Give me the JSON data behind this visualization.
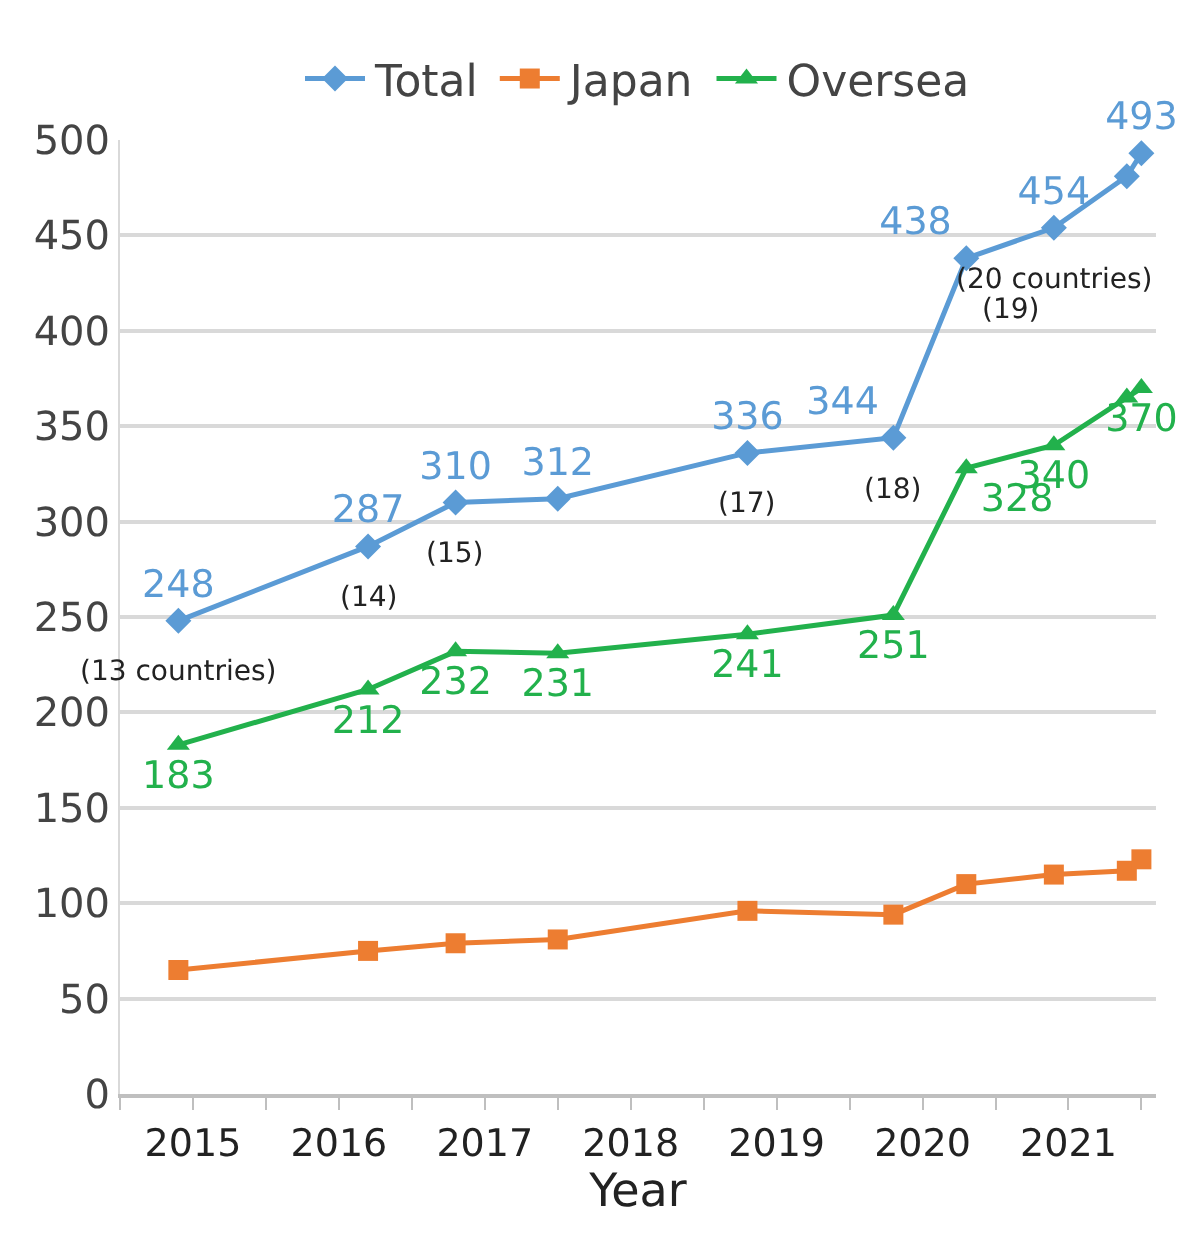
{
  "chart_data": {
    "type": "line",
    "xlabel": "Year",
    "xlim": [
      2015,
      2022.1
    ],
    "xticks": [
      {
        "value": 2015,
        "label": null
      },
      {
        "value": 2015.5,
        "label": "2015"
      },
      {
        "value": 2016,
        "label": null
      },
      {
        "value": 2016.5,
        "label": "2016"
      },
      {
        "value": 2017,
        "label": null
      },
      {
        "value": 2017.5,
        "label": "2017"
      },
      {
        "value": 2018,
        "label": null
      },
      {
        "value": 2018.5,
        "label": "2018"
      },
      {
        "value": 2019,
        "label": null
      },
      {
        "value": 2019.5,
        "label": "2019"
      },
      {
        "value": 2020,
        "label": null
      },
      {
        "value": 2020.5,
        "label": "2020"
      },
      {
        "value": 2021,
        "label": null
      },
      {
        "value": 2021.5,
        "label": "2021"
      },
      {
        "value": 2022,
        "label": null
      }
    ],
    "ylim": [
      0,
      500
    ],
    "yticks": [
      0,
      50,
      100,
      150,
      200,
      250,
      300,
      350,
      400,
      450,
      500
    ],
    "grid": "y",
    "legend": "top",
    "x": [
      2015.4,
      2016.7,
      2017.3,
      2018.0,
      2019.3,
      2020.3,
      2020.8,
      2021.4,
      2021.9,
      2022.0
    ],
    "series": [
      {
        "name": "Total",
        "color": "#5b9bd5",
        "marker": "diamond",
        "values": [
          248,
          287,
          310,
          312,
          336,
          344,
          438,
          454,
          481,
          493
        ],
        "value_labels": [
          "248",
          "287",
          "310",
          "312",
          "336",
          "344",
          "438",
          "454",
          null,
          "493"
        ]
      },
      {
        "name": "Japan",
        "color": "#ed7d31",
        "marker": "square",
        "values": [
          65,
          75,
          79,
          81,
          96,
          94,
          110,
          115,
          117,
          123
        ]
      },
      {
        "name": "Oversea",
        "color": "#22b14c",
        "marker": "triangle",
        "values": [
          183,
          212,
          232,
          231,
          241,
          251,
          328,
          340,
          365,
          370
        ],
        "value_labels": [
          "183",
          "212",
          "232",
          "231",
          "241",
          "251",
          "328",
          "340",
          null,
          "370"
        ]
      }
    ],
    "annotations": [
      {
        "text": "(13 countries)",
        "x": 2015.4,
        "y": 248
      },
      {
        "text": "(14)",
        "x": 2016.7,
        "y": 287
      },
      {
        "text": "(15)",
        "x": 2017.3,
        "y": 310
      },
      {
        "text": "(17)",
        "x": 2019.3,
        "y": 336
      },
      {
        "text": "(18)",
        "x": 2020.3,
        "y": 344
      },
      {
        "text": "(19)",
        "x": 2020.8,
        "y": 438
      },
      {
        "text": "(20 countries)",
        "x": 2021.4,
        "y": 454
      }
    ]
  }
}
